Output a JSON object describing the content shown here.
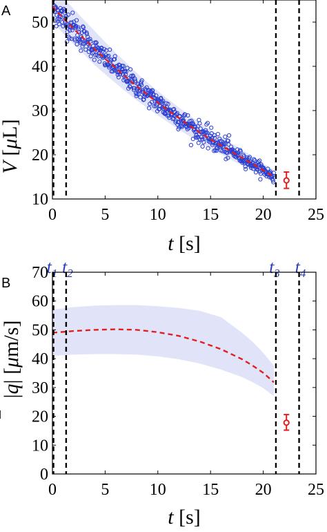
{
  "chart_data": [
    {
      "panel": "A",
      "type": "scatter",
      "xlabel": "t [s]",
      "ylabel": "V [μL]",
      "xlim": [
        0,
        25
      ],
      "ylim": [
        10,
        55
      ],
      "xticks": [
        0,
        5,
        10,
        15,
        20,
        25
      ],
      "yticks": [
        10,
        20,
        30,
        40,
        50
      ],
      "vlines": [
        0.1,
        1.3,
        21.2,
        23.4
      ],
      "fit_curve": {
        "x": [
          0,
          1,
          2,
          3,
          4,
          5,
          6,
          7,
          8,
          9,
          10,
          11,
          12,
          13,
          14,
          15,
          16,
          17,
          18,
          19,
          20,
          21
        ],
        "y": [
          53.5,
          51,
          48.5,
          46.2,
          43.9,
          41.7,
          39.6,
          37.5,
          35.5,
          33.6,
          31.8,
          30,
          28.3,
          26.6,
          25,
          23.5,
          22.1,
          20.7,
          19.3,
          17.9,
          16.5,
          15
        ]
      },
      "band": {
        "x": [
          0,
          1,
          2,
          3,
          4,
          5,
          6,
          7,
          8,
          9,
          10,
          11,
          12,
          13,
          14,
          15,
          16,
          17,
          18,
          19,
          20,
          21
        ],
        "lower": [
          50,
          47.5,
          45,
          42.7,
          40.3,
          38.2,
          36.2,
          34.2,
          32.3,
          30.6,
          28.9,
          27.3,
          25.7,
          24.2,
          22.8,
          21.4,
          20.1,
          18.8,
          17.6,
          16.4,
          15.2,
          14
        ],
        "upper": [
          57,
          55.5,
          53,
          50.5,
          48,
          45.5,
          43.1,
          40.8,
          38.5,
          36.4,
          34.4,
          32.5,
          30.7,
          28.9,
          27.2,
          25.6,
          24.1,
          22.6,
          21.1,
          19.6,
          18,
          16.6
        ]
      },
      "scatter_noise_sd": 1.2,
      "scatter_count": 560,
      "error_point": {
        "x": 22.2,
        "y": 14.2,
        "lower": 12.4,
        "upper": 16.1
      },
      "colors": {
        "points": "#2a3fd1",
        "fit": "#e01f1f",
        "band": "#e1e3f8",
        "error": "#e01f1f",
        "vlines": "#000000"
      }
    },
    {
      "panel": "B",
      "type": "line",
      "xlabel": "t [s]",
      "ylabel": "|q̄| [μm/s]",
      "xlim": [
        0,
        25
      ],
      "ylim": [
        0,
        70
      ],
      "xticks": [
        0,
        5,
        10,
        15,
        20,
        25
      ],
      "yticks": [
        0,
        10,
        20,
        30,
        40,
        50,
        60,
        70
      ],
      "vlines": [
        0.1,
        1.3,
        21.2,
        23.4
      ],
      "mean_curve": {
        "x": [
          0,
          2,
          4,
          6,
          8,
          10,
          12,
          14,
          16,
          18,
          19,
          20,
          21
        ],
        "y": [
          49,
          49.6,
          50.0,
          50.2,
          50.0,
          49.2,
          47.9,
          45.9,
          43.3,
          39.8,
          37.6,
          35.1,
          31.8
        ]
      },
      "band": {
        "x": [
          0,
          2,
          4,
          6,
          8,
          10,
          12,
          14,
          16,
          18,
          19,
          20,
          21
        ],
        "lower": [
          41,
          41.4,
          41.6,
          41.6,
          41.4,
          40.8,
          39.8,
          38.3,
          36.2,
          33.6,
          31.8,
          29.8,
          27.0
        ],
        "upper": [
          57,
          57.9,
          58.4,
          58.6,
          58.6,
          58.2,
          57.6,
          56.6,
          54.4,
          49.0,
          45.8,
          42.0,
          37.6
        ]
      },
      "error_point": {
        "x": 22.2,
        "y": 17.8,
        "lower": 15.2,
        "upper": 20.6
      },
      "colors": {
        "fit": "#e01f1f",
        "band": "#e1e3f8",
        "error": "#e01f1f",
        "vlines": "#000000"
      }
    }
  ],
  "time_markers": [
    "t1",
    "t2",
    "t3",
    "t4"
  ],
  "time_marker_x": [
    0.1,
    1.3,
    21.2,
    23.4
  ],
  "panel_labels": [
    "A",
    "B"
  ]
}
